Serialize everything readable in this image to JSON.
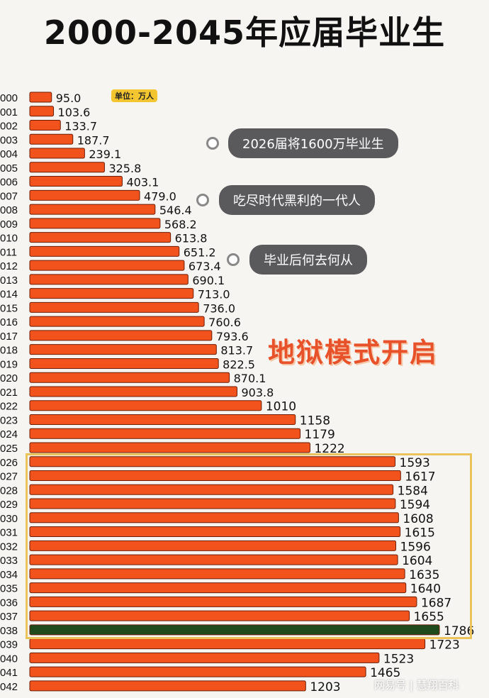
{
  "title": "2000-2045年应届毕业生",
  "unit_badge": "单位：万人",
  "annotations": [
    "2026届将1600万毕业生",
    "吃尽时代黑利的一代人",
    "毕业后何去何从"
  ],
  "headline_overlay": "地狱模式开启",
  "watermark": "网易号 | 慧翔百科",
  "colors": {
    "bar": "#f2531c",
    "highlight_bar": "#1f4a1c",
    "highlight_box": "#eac35a",
    "pill": "#5a5a5c"
  },
  "chart_data": {
    "type": "bar",
    "orientation": "horizontal",
    "title": "2000-2045年应届毕业生",
    "unit": "万人",
    "categories": [
      "000",
      "001",
      "002",
      "003",
      "004",
      "005",
      "006",
      "007",
      "008",
      "009",
      "010",
      "011",
      "012",
      "013",
      "014",
      "015",
      "016",
      "017",
      "018",
      "019",
      "020",
      "021",
      "022",
      "023",
      "024",
      "025",
      "026",
      "027",
      "028",
      "029",
      "030",
      "031",
      "032",
      "033",
      "034",
      "035",
      "036",
      "037",
      "038",
      "039",
      "040",
      "041",
      "042"
    ],
    "values": [
      95.0,
      103.6,
      133.7,
      187.7,
      239.1,
      325.8,
      403.1,
      479.0,
      546.4,
      568.2,
      613.8,
      651.2,
      673.4,
      690.1,
      713.0,
      736.0,
      760.6,
      793.6,
      813.7,
      822.5,
      870.1,
      903.8,
      1010,
      1158,
      1179,
      1222,
      1593,
      1617,
      1584,
      1594,
      1608,
      1615,
      1596,
      1604,
      1635,
      1640,
      1687,
      1655,
      1786,
      1723,
      1523,
      1465,
      1203
    ],
    "value_labels": [
      "95.0",
      "103.6",
      "133.7",
      "187.7",
      "239.1",
      "325.8",
      "403.1",
      "479.0",
      "546.4",
      "568.2",
      "613.8",
      "651.2",
      "673.4",
      "690.1",
      "713.0",
      "736.0",
      "760.6",
      "793.6",
      "813.7",
      "822.5",
      "870.1",
      "903.8",
      "1010",
      "1158",
      "1179",
      "1222",
      "1593",
      "1617",
      "1584",
      "1594",
      "1608",
      "1615",
      "1596",
      "1604",
      "1635",
      "1640",
      "1687",
      "1655",
      "1786",
      "1723",
      "1523",
      "1465",
      "1203"
    ],
    "highlighted_category": "038",
    "highlight_range": [
      "026",
      "038"
    ],
    "grid": false
  }
}
